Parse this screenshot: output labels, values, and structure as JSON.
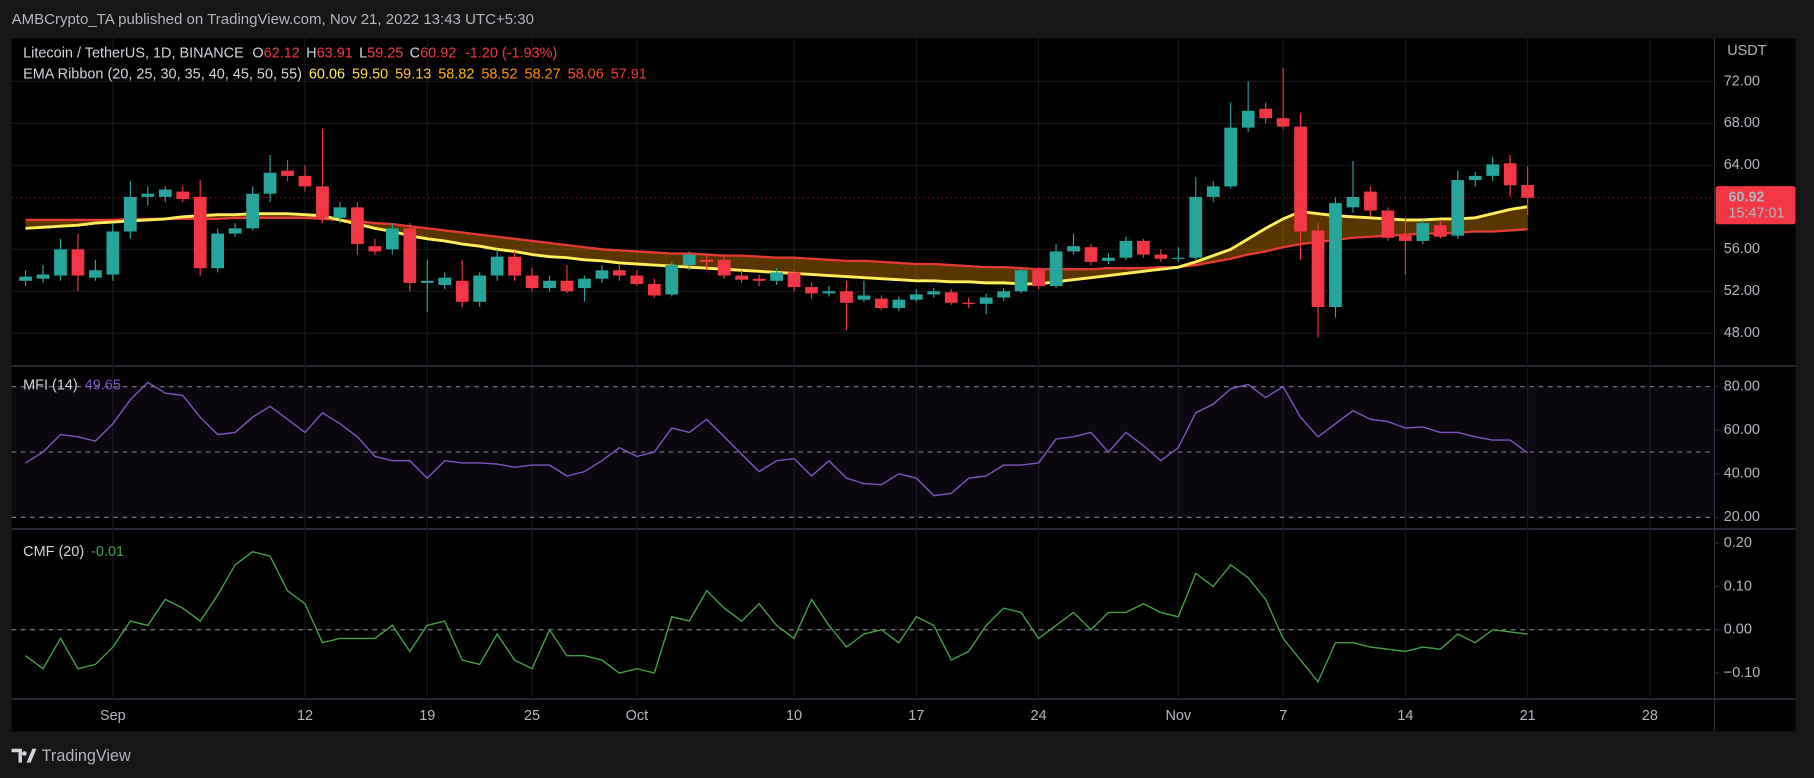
{
  "header": {
    "title": "AMBCrypto_TA published on TradingView.com, Nov 21, 2022 13:43 UTC+5:30"
  },
  "footer": {
    "brand": "TradingView"
  },
  "chart_data": [
    {
      "type": "candlestick",
      "title": "Litecoin / TetherUS, 1D, BINANCE",
      "ohlc_labels": [
        "O",
        "H",
        "L",
        "C"
      ],
      "change": "-1.20 (-1.93%)",
      "currency": "USDT",
      "countdown": "15:47:01",
      "up_color": "#26a69a",
      "down_color": "#f23645",
      "grid": true,
      "open": [
        53.0,
        53.2,
        53.5,
        56.0,
        53.3,
        53.6,
        57.7,
        61.0,
        61.0,
        61.5,
        61.0,
        54.2,
        57.5,
        58.0,
        61.3,
        63.5,
        63.0,
        62.0,
        59.0,
        60.0,
        56.3,
        56.0,
        58.0,
        52.8,
        52.6,
        53.0,
        51.0,
        53.5,
        55.3,
        53.5,
        52.3,
        53.0,
        52.3,
        53.2,
        54.0,
        53.5,
        52.7,
        51.7,
        54.5,
        55.0,
        55.0,
        53.5,
        53.2,
        53.0,
        53.8,
        52.4,
        51.8,
        52.0,
        51.2,
        51.3,
        50.4,
        51.2,
        51.7,
        51.9,
        50.9,
        50.8,
        51.4,
        52.0,
        54.0,
        52.5,
        55.8,
        56.2,
        54.9,
        55.2,
        56.8,
        55.5,
        55.1,
        55.2,
        61.0,
        62.0,
        67.6,
        69.4,
        68.5,
        67.7,
        57.8,
        50.5,
        60.0,
        61.5,
        59.7,
        57.3,
        56.8,
        58.3,
        57.3,
        62.6,
        63.0,
        64.2,
        62.12
      ],
      "high": [
        54.0,
        54.5,
        57.0,
        57.5,
        55.0,
        58.5,
        62.5,
        62.0,
        62.0,
        62.0,
        62.6,
        58.0,
        58.5,
        62.0,
        65.0,
        64.5,
        64.0,
        67.5,
        60.5,
        60.5,
        57.0,
        58.5,
        58.5,
        55.0,
        53.8,
        55.0,
        53.8,
        56.0,
        55.8,
        54.2,
        53.5,
        54.5,
        53.5,
        54.5,
        54.5,
        54.0,
        53.2,
        54.8,
        55.8,
        55.6,
        55.3,
        54.0,
        53.6,
        54.2,
        54.0,
        52.8,
        52.5,
        53.0,
        53.0,
        51.6,
        51.5,
        52.2,
        52.3,
        52.2,
        51.4,
        51.8,
        52.3,
        54.2,
        54.3,
        56.5,
        57.5,
        56.5,
        55.6,
        57.2,
        57.0,
        56.0,
        56.2,
        62.9,
        62.5,
        70.0,
        72.0,
        70.0,
        73.3,
        69.0,
        58.5,
        61.0,
        64.4,
        62.0,
        60.0,
        59.0,
        58.8,
        58.8,
        63.5,
        63.4,
        64.8,
        65.0,
        63.91
      ],
      "low": [
        52.5,
        52.8,
        53.0,
        52.0,
        53.0,
        53.0,
        57.0,
        60.2,
        60.5,
        60.5,
        53.5,
        53.8,
        57.2,
        57.8,
        60.5,
        62.5,
        61.5,
        58.5,
        58.5,
        55.5,
        55.5,
        55.5,
        52.0,
        50.0,
        52.2,
        50.5,
        50.5,
        53.0,
        53.0,
        52.0,
        52.0,
        51.8,
        51.0,
        52.8,
        53.0,
        52.5,
        51.4,
        51.5,
        54.0,
        54.0,
        53.2,
        52.8,
        52.5,
        52.6,
        52.0,
        51.3,
        51.5,
        48.3,
        51.0,
        50.2,
        50.1,
        51.0,
        51.4,
        50.7,
        50.4,
        49.8,
        51.1,
        51.8,
        52.2,
        52.3,
        55.5,
        54.5,
        54.6,
        55.0,
        55.2,
        54.8,
        54.8,
        55.0,
        60.5,
        61.8,
        67.2,
        68.0,
        67.5,
        55.0,
        47.6,
        49.5,
        59.5,
        59.2,
        56.8,
        53.6,
        56.5,
        57.0,
        57.0,
        62.0,
        62.5,
        61.0,
        59.25
      ],
      "close": [
        53.4,
        53.6,
        56.0,
        53.5,
        54.0,
        57.7,
        61.0,
        61.3,
        61.7,
        60.8,
        54.2,
        57.5,
        58.0,
        61.3,
        63.3,
        63.0,
        62.0,
        59.0,
        60.0,
        56.5,
        55.8,
        58.0,
        52.8,
        53.0,
        53.3,
        51.0,
        53.5,
        55.3,
        53.5,
        52.3,
        53.0,
        52.0,
        53.2,
        54.0,
        53.5,
        52.7,
        51.6,
        54.5,
        55.5,
        54.8,
        53.5,
        53.1,
        53.0,
        53.8,
        52.4,
        51.8,
        52.0,
        50.9,
        51.6,
        50.4,
        51.2,
        51.7,
        52.0,
        50.9,
        50.8,
        51.4,
        52.0,
        54.0,
        52.5,
        55.8,
        56.3,
        54.8,
        55.2,
        56.8,
        55.5,
        55.1,
        55.2,
        61.0,
        62.0,
        67.6,
        69.2,
        68.5,
        67.7,
        57.7,
        50.5,
        60.4,
        61.0,
        59.7,
        57.1,
        56.8,
        58.5,
        57.2,
        62.6,
        63.0,
        64.1,
        62.1,
        60.92
      ],
      "ribbon": {
        "name": "EMA Ribbon (20, 25, 30, 35, 40, 45, 50, 55)",
        "value_labels": [
          "60.06",
          "59.50",
          "59.13",
          "58.82",
          "58.52",
          "58.27",
          "58.06",
          "57.91"
        ],
        "colors": [
          "#ffee58",
          "#fdd835",
          "#fbc02d",
          "#ffb300",
          "#ff9800",
          "#fb8c00",
          "#f4511e",
          "#e53935"
        ],
        "fast": [
          58.0,
          58.1,
          58.2,
          58.3,
          58.5,
          58.6,
          58.7,
          58.8,
          58.9,
          59.1,
          59.2,
          59.3,
          59.3,
          59.4,
          59.4,
          59.4,
          59.3,
          59.2,
          58.8,
          58.4,
          58.0,
          57.7,
          57.3,
          57.0,
          56.8,
          56.5,
          56.3,
          56.0,
          55.8,
          55.5,
          55.3,
          55.2,
          55.0,
          54.9,
          54.7,
          54.6,
          54.5,
          54.4,
          54.3,
          54.2,
          54.1,
          54.0,
          53.9,
          53.8,
          53.7,
          53.6,
          53.5,
          53.4,
          53.3,
          53.2,
          53.1,
          53.0,
          53.0,
          52.9,
          52.9,
          52.8,
          52.8,
          52.7,
          52.7,
          52.9,
          53.1,
          53.3,
          53.5,
          53.7,
          53.9,
          54.1,
          54.3,
          54.8,
          55.4,
          56.0,
          57.0,
          58.0,
          58.9,
          59.6,
          59.4,
          59.2,
          59.1,
          59.0,
          58.9,
          58.8,
          58.8,
          58.9,
          58.9,
          59.0,
          59.4,
          59.8,
          60.06
        ],
        "slow": [
          58.8,
          58.8,
          58.8,
          58.8,
          58.8,
          58.8,
          58.9,
          58.9,
          58.9,
          58.9,
          58.9,
          58.9,
          59.0,
          59.0,
          59.0,
          59.0,
          59.0,
          58.9,
          58.8,
          58.7,
          58.5,
          58.4,
          58.2,
          58.0,
          57.8,
          57.6,
          57.4,
          57.2,
          57.0,
          56.8,
          56.6,
          56.4,
          56.2,
          56.0,
          55.9,
          55.8,
          55.7,
          55.6,
          55.6,
          55.5,
          55.4,
          55.4,
          55.3,
          55.2,
          55.2,
          55.1,
          55.0,
          54.9,
          54.9,
          54.8,
          54.7,
          54.6,
          54.6,
          54.5,
          54.4,
          54.3,
          54.3,
          54.2,
          54.1,
          54.1,
          54.1,
          54.1,
          54.2,
          54.2,
          54.2,
          54.3,
          54.3,
          54.5,
          54.8,
          55.1,
          55.5,
          55.8,
          56.2,
          56.5,
          56.7,
          56.9,
          57.1,
          57.2,
          57.3,
          57.4,
          57.5,
          57.5,
          57.6,
          57.7,
          57.7,
          57.8,
          57.91
        ]
      },
      "xlim": [
        -0.8,
        96.7
      ],
      "xticks": [
        {
          "value": 5,
          "label": "Sep"
        },
        {
          "value": 16,
          "label": "12"
        },
        {
          "value": 23,
          "label": "19"
        },
        {
          "value": 29,
          "label": "25"
        },
        {
          "value": 35,
          "label": "Oct"
        },
        {
          "value": 44,
          "label": "10"
        },
        {
          "value": 51,
          "label": "17"
        },
        {
          "value": 58,
          "label": "24"
        },
        {
          "value": 66,
          "label": "Nov"
        },
        {
          "value": 72,
          "label": "7"
        },
        {
          "value": 79,
          "label": "14"
        },
        {
          "value": 86,
          "label": "21"
        },
        {
          "value": 93,
          "label": "28"
        }
      ],
      "ylim": [
        45.0,
        76.1
      ],
      "yticks": [
        {
          "value": 72,
          "label": "72.00"
        },
        {
          "value": 68,
          "label": "68.00"
        },
        {
          "value": 64,
          "label": "64.00"
        },
        {
          "value": 56,
          "label": "56.00"
        },
        {
          "value": 52,
          "label": "52.00"
        },
        {
          "value": 48,
          "label": "48.00"
        }
      ]
    },
    {
      "type": "line",
      "title": "MFI (14)",
      "color": "#7e57c2",
      "values": [
        45,
        50,
        58,
        57,
        55,
        63,
        74,
        82,
        77,
        76,
        66,
        58,
        59,
        66,
        71,
        65,
        59,
        68,
        63,
        57,
        48,
        46,
        46,
        38,
        46,
        45,
        45,
        44.5,
        43,
        44,
        44,
        39,
        41,
        46,
        52,
        48,
        50,
        61,
        59,
        65,
        57,
        49,
        41,
        46,
        47,
        39,
        46,
        38,
        35.5,
        35,
        40,
        38,
        30,
        31,
        38,
        39,
        44,
        44,
        45,
        56,
        57,
        59,
        50,
        59,
        53,
        46,
        52,
        68,
        72,
        79,
        81,
        75,
        80,
        66,
        57,
        63,
        69,
        65,
        64,
        61,
        61.5,
        59,
        59,
        57,
        55.5,
        55.5,
        49.65
      ],
      "bands": {
        "upper": 80,
        "middle": 50,
        "lower": 20
      },
      "ylim": [
        15.2,
        88.5
      ],
      "yticks": [
        {
          "value": 80,
          "label": "80.00"
        },
        {
          "value": 60,
          "label": "60.00"
        },
        {
          "value": 40,
          "label": "40.00"
        },
        {
          "value": 20,
          "label": "20.00"
        }
      ]
    },
    {
      "type": "line",
      "title": "CMF (20)",
      "color": "#43a047",
      "values": [
        -0.06,
        -0.09,
        -0.02,
        -0.09,
        -0.08,
        -0.04,
        0.02,
        0.01,
        0.07,
        0.05,
        0.02,
        0.08,
        0.15,
        0.18,
        0.17,
        0.09,
        0.06,
        -0.03,
        -0.02,
        -0.02,
        -0.02,
        0.01,
        -0.05,
        0.01,
        0.02,
        -0.07,
        -0.08,
        -0.01,
        -0.07,
        -0.09,
        0,
        -0.06,
        -0.06,
        -0.07,
        -0.1,
        -0.09,
        -0.1,
        0.03,
        0.02,
        0.09,
        0.05,
        0.02,
        0.06,
        0.01,
        -0.02,
        0.07,
        0.01,
        -0.04,
        -0.01,
        0,
        -0.03,
        0.03,
        0.01,
        -0.07,
        -0.05,
        0.01,
        0.05,
        0.04,
        -0.02,
        0.01,
        0.04,
        0,
        0.04,
        0.04,
        0.06,
        0.04,
        0.03,
        0.13,
        0.1,
        0.15,
        0.12,
        0.07,
        -0.02,
        -0.07,
        -0.12,
        -0.03,
        -0.03,
        -0.04,
        -0.045,
        -0.05,
        -0.04,
        -0.045,
        -0.01,
        -0.03,
        0,
        -0.005,
        -0.01
      ],
      "baseline": 0,
      "ylim": [
        -0.16,
        0.23
      ],
      "yticks": [
        {
          "value": 0.2,
          "label": "0.20"
        },
        {
          "value": 0.1,
          "label": "0.10"
        },
        {
          "value": 0,
          "label": "0.00"
        },
        {
          "value": -0.1,
          "label": "−0.10"
        }
      ]
    }
  ]
}
